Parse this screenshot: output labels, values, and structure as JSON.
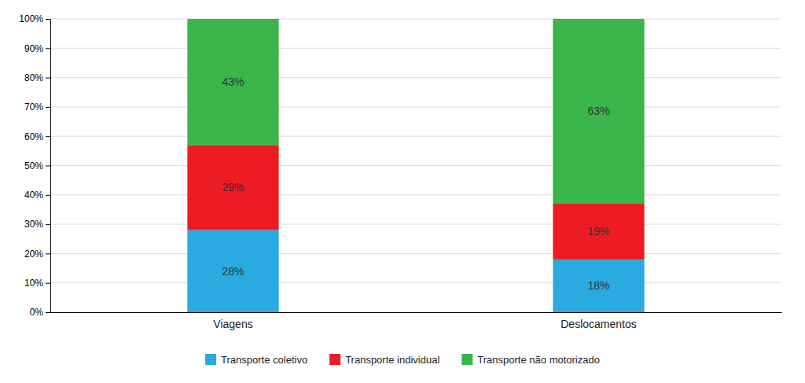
{
  "chart_data": {
    "type": "bar",
    "stacked": true,
    "data_labels": true,
    "grid": true,
    "legend": "bottom",
    "categories": [
      "Viagens",
      "Deslocamentos"
    ],
    "series": [
      {
        "name": "Transporte coletivo",
        "color": "#29ABE2",
        "values": [
          28,
          18
        ],
        "value_labels": [
          "28%",
          "18%"
        ]
      },
      {
        "name": "Transporte individual",
        "color": "#ED1C24",
        "values": [
          29,
          19
        ],
        "value_labels": [
          "29%",
          "19%"
        ]
      },
      {
        "name": "Transporte não motorizado",
        "color": "#39B54A",
        "values": [
          43,
          63
        ],
        "value_labels": [
          "43%",
          "63%"
        ]
      }
    ],
    "ylim": [
      0,
      100
    ],
    "yticks": [
      {
        "value": 0,
        "label": "0%"
      },
      {
        "value": 10,
        "label": "10%"
      },
      {
        "value": 20,
        "label": "20%"
      },
      {
        "value": 30,
        "label": "30%"
      },
      {
        "value": 40,
        "label": "40%"
      },
      {
        "value": 50,
        "label": "50%"
      },
      {
        "value": 60,
        "label": "60%"
      },
      {
        "value": 70,
        "label": "70%"
      },
      {
        "value": 80,
        "label": "80%"
      },
      {
        "value": 90,
        "label": "90%"
      },
      {
        "value": 100,
        "label": "100%"
      }
    ]
  }
}
